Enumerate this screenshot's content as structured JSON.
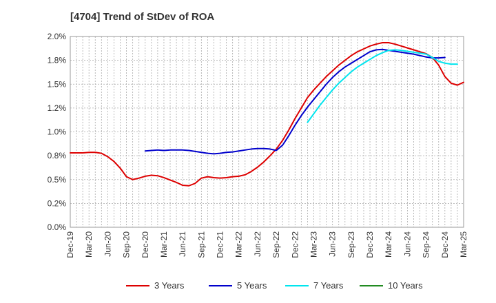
{
  "chart_data": {
    "type": "line",
    "title": "[4704]  Trend of StDev of ROA",
    "xlabel": "",
    "ylabel": "",
    "ylim": [
      0,
      2.0
    ],
    "y_ticks": [
      "0.0%",
      "0.2%",
      "0.5%",
      "0.8%",
      "1.0%",
      "1.2%",
      "1.5%",
      "1.8%",
      "2.0%"
    ],
    "x_ticks": [
      "Dec-19",
      "Mar-20",
      "Jun-20",
      "Sep-20",
      "Dec-20",
      "Mar-21",
      "Jun-21",
      "Sep-21",
      "Dec-21",
      "Mar-22",
      "Jun-22",
      "Sep-22",
      "Dec-22",
      "Mar-23",
      "Jun-23",
      "Sep-23",
      "Dec-23",
      "Mar-24",
      "Jun-24",
      "Sep-24",
      "Dec-24",
      "Mar-25"
    ],
    "grid": true,
    "legend_position": "bottom",
    "series": [
      {
        "name": "3 Years",
        "color": "#dd0000",
        "start_index": 0,
        "values": [
          0.78,
          0.78,
          0.78,
          0.785,
          0.785,
          0.775,
          0.74,
          0.69,
          0.62,
          0.53,
          0.5,
          0.515,
          0.535,
          0.545,
          0.54,
          0.52,
          0.495,
          0.47,
          0.44,
          0.435,
          0.46,
          0.515,
          0.53,
          0.52,
          0.515,
          0.52,
          0.53,
          0.535,
          0.55,
          0.585,
          0.63,
          0.685,
          0.75,
          0.82,
          0.91,
          1.02,
          1.14,
          1.25,
          1.36,
          1.44,
          1.51,
          1.58,
          1.64,
          1.7,
          1.75,
          1.8,
          1.84,
          1.87,
          1.9,
          1.92,
          1.935,
          1.935,
          1.92,
          1.9,
          1.88,
          1.86,
          1.84,
          1.82,
          1.78,
          1.7,
          1.58,
          1.51,
          1.49,
          1.52
        ]
      },
      {
        "name": "5 Years",
        "color": "#0000cc",
        "start_index": 12,
        "values": [
          0.8,
          0.805,
          0.81,
          0.805,
          0.81,
          0.81,
          0.81,
          0.805,
          0.795,
          0.785,
          0.775,
          0.77,
          0.775,
          0.785,
          0.79,
          0.8,
          0.81,
          0.82,
          0.825,
          0.825,
          0.82,
          0.805,
          0.86,
          0.96,
          1.07,
          1.17,
          1.26,
          1.34,
          1.42,
          1.5,
          1.57,
          1.63,
          1.68,
          1.72,
          1.76,
          1.8,
          1.84,
          1.86,
          1.865,
          1.855,
          1.845,
          1.835,
          1.825,
          1.815,
          1.8,
          1.785,
          1.775,
          1.775,
          1.78
        ]
      },
      {
        "name": "7 Years",
        "color": "#00e5ee",
        "start_index": 38,
        "values": [
          1.1,
          1.19,
          1.28,
          1.36,
          1.44,
          1.51,
          1.57,
          1.63,
          1.68,
          1.72,
          1.76,
          1.8,
          1.83,
          1.855,
          1.86,
          1.855,
          1.845,
          1.835,
          1.825,
          1.815,
          1.78,
          1.74,
          1.72,
          1.71,
          1.71
        ]
      },
      {
        "name": "10 Years",
        "color": "#228b22",
        "start_index": 0,
        "values": []
      }
    ]
  }
}
